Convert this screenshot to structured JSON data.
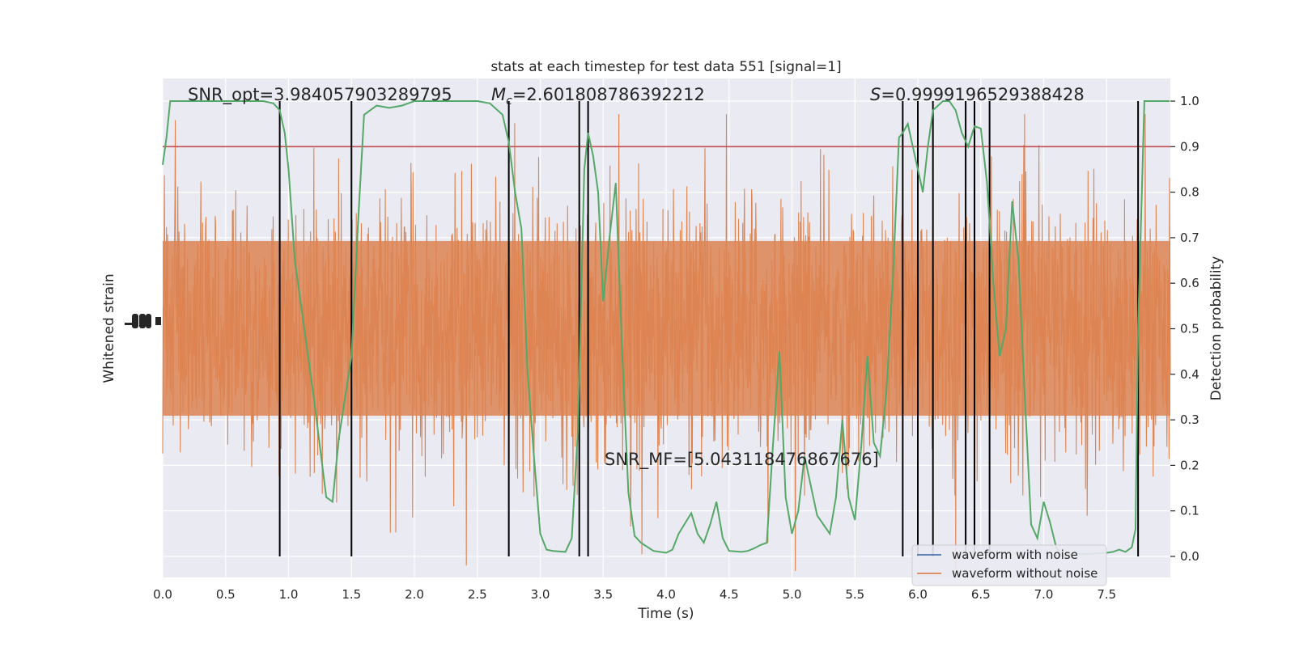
{
  "chart_data": {
    "type": "line",
    "title": "stats at each timestep for test data 551 [signal=1]",
    "xlabel": "Time (s)",
    "ylabel_left": "Whitened strain",
    "ylabel_right": "Detection probability",
    "xlim": [
      0.0,
      8.0
    ],
    "ylim_right": [
      -0.05,
      1.05
    ],
    "x_ticks": [
      "0.0",
      "0.5",
      "1.0",
      "1.5",
      "2.0",
      "2.5",
      "3.0",
      "3.5",
      "4.0",
      "4.5",
      "5.0",
      "5.5",
      "6.0",
      "6.5",
      "7.0",
      "7.5"
    ],
    "y_right_ticks": [
      "0.0",
      "0.1",
      "0.2",
      "0.3",
      "0.4",
      "0.5",
      "0.6",
      "0.7",
      "0.8",
      "0.9",
      "1.0"
    ],
    "grid": true,
    "legend_position": "bottom-right",
    "annotations": {
      "snr_opt": "SNR_opt=3.984057903289795",
      "mc_symbol": "M",
      "mc_sub": "c",
      "mc_value": "=2.601808786392212",
      "s_symbol": "S",
      "s_value": "=0.9999196529388428",
      "snr_mf": "SNR_MF=[5.043118476867676]"
    },
    "threshold": 0.9,
    "vertical_lines_x": [
      0.93,
      1.5,
      2.75,
      3.31,
      3.38,
      5.88,
      6.0,
      6.12,
      6.38,
      6.45,
      6.57,
      7.75
    ],
    "series": [
      {
        "name": "waveform with noise",
        "color": "#4c72b0"
      },
      {
        "name": "waveform without noise",
        "color": "#dd8452"
      }
    ],
    "probability_series": {
      "color": "#55a868",
      "x": [
        0.0,
        0.03,
        0.06,
        0.1,
        0.2,
        0.3,
        0.4,
        0.5,
        0.6,
        0.7,
        0.8,
        0.88,
        0.93,
        0.97,
        1.0,
        1.05,
        1.1,
        1.2,
        1.3,
        1.35,
        1.4,
        1.5,
        1.55,
        1.6,
        1.7,
        1.8,
        1.9,
        2.0,
        2.1,
        2.2,
        2.3,
        2.4,
        2.5,
        2.6,
        2.7,
        2.75,
        2.8,
        2.85,
        2.9,
        2.95,
        3.0,
        3.05,
        3.1,
        3.2,
        3.25,
        3.3,
        3.35,
        3.38,
        3.42,
        3.46,
        3.5,
        3.55,
        3.6,
        3.65,
        3.7,
        3.75,
        3.8,
        3.9,
        4.0,
        4.05,
        4.1,
        4.2,
        4.25,
        4.3,
        4.35,
        4.4,
        4.45,
        4.5,
        4.6,
        4.65,
        4.7,
        4.75,
        4.8,
        4.85,
        4.9,
        4.95,
        5.0,
        5.05,
        5.1,
        5.2,
        5.3,
        5.35,
        5.4,
        5.45,
        5.5,
        5.55,
        5.6,
        5.65,
        5.7,
        5.75,
        5.8,
        5.85,
        5.88,
        5.92,
        5.96,
        6.0,
        6.04,
        6.08,
        6.12,
        6.16,
        6.2,
        6.25,
        6.3,
        6.35,
        6.4,
        6.45,
        6.5,
        6.55,
        6.6,
        6.65,
        6.7,
        6.75,
        6.8,
        6.85,
        6.9,
        6.95,
        7.0,
        7.05,
        7.1,
        7.15,
        7.2,
        7.3,
        7.4,
        7.5,
        7.55,
        7.6,
        7.65,
        7.7,
        7.73,
        7.75,
        7.8,
        7.85,
        7.9,
        7.95,
        8.0
      ],
      "y": [
        0.86,
        0.92,
        1.0,
        1.0,
        1.0,
        1.0,
        1.0,
        1.0,
        1.0,
        1.0,
        1.0,
        0.995,
        0.98,
        0.93,
        0.85,
        0.65,
        0.55,
        0.35,
        0.13,
        0.12,
        0.26,
        0.44,
        0.72,
        0.97,
        0.99,
        0.985,
        0.99,
        1.0,
        1.0,
        1.0,
        1.0,
        1.0,
        1.0,
        0.995,
        0.97,
        0.91,
        0.8,
        0.72,
        0.4,
        0.22,
        0.05,
        0.015,
        0.012,
        0.01,
        0.04,
        0.28,
        0.85,
        0.93,
        0.88,
        0.8,
        0.56,
        0.7,
        0.82,
        0.45,
        0.14,
        0.045,
        0.03,
        0.012,
        0.008,
        0.015,
        0.05,
        0.095,
        0.05,
        0.03,
        0.07,
        0.12,
        0.04,
        0.012,
        0.01,
        0.012,
        0.018,
        0.025,
        0.03,
        0.25,
        0.45,
        0.13,
        0.05,
        0.1,
        0.22,
        0.09,
        0.05,
        0.13,
        0.3,
        0.13,
        0.08,
        0.24,
        0.44,
        0.25,
        0.22,
        0.36,
        0.6,
        0.92,
        0.93,
        0.95,
        0.9,
        0.85,
        0.8,
        0.9,
        0.98,
        0.99,
        1.0,
        1.0,
        0.98,
        0.93,
        0.9,
        0.945,
        0.94,
        0.82,
        0.6,
        0.44,
        0.5,
        0.78,
        0.65,
        0.35,
        0.07,
        0.04,
        0.12,
        0.075,
        0.02,
        0.0,
        0.005,
        0.005,
        0.006,
        0.008,
        0.01,
        0.015,
        0.01,
        0.02,
        0.06,
        0.5,
        1.0,
        1.0,
        1.0,
        1.0,
        1.0
      ]
    }
  }
}
